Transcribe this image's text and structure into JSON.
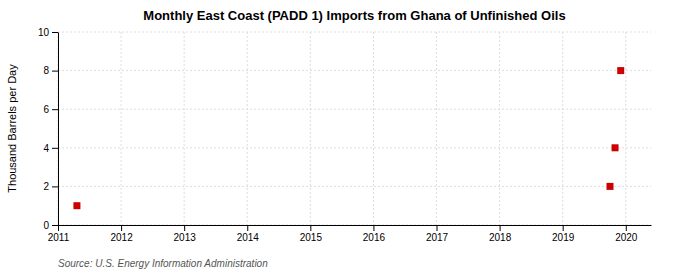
{
  "chart_data": {
    "type": "scatter",
    "title": "Monthly East Coast (PADD 1) Imports from Ghana of Unfinished Oils",
    "ylabel": "Thousand Barrels per Day",
    "source": "Source: U.S. Energy Information Administration",
    "x": [
      2011.3,
      2019.75,
      2019.83,
      2019.92
    ],
    "values": [
      1,
      2,
      4,
      8
    ],
    "color": "#cc0000",
    "marker": "square",
    "xlim": [
      2011,
      2020.4
    ],
    "ylim": [
      0,
      10
    ],
    "xticks": [
      2011,
      2012,
      2013,
      2014,
      2015,
      2016,
      2017,
      2018,
      2019,
      2020
    ],
    "yticks": [
      0,
      2,
      4,
      6,
      8,
      10
    ],
    "grid": true
  }
}
